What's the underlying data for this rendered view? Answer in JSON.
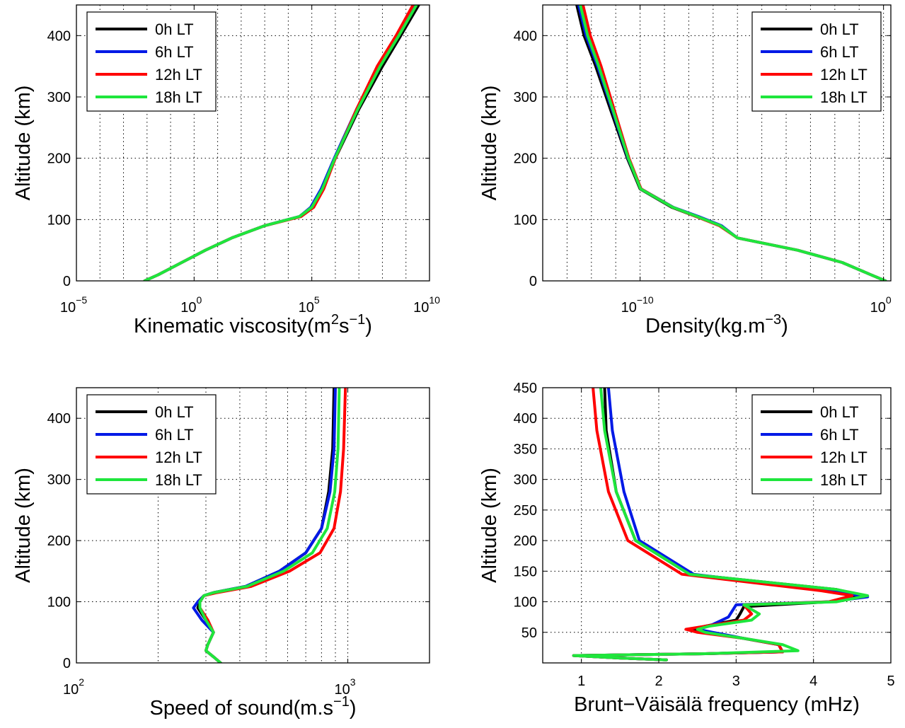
{
  "series_names": [
    "0h LT",
    "6h LT",
    "12h LT",
    "18h LT"
  ],
  "series_colors": [
    "#000000",
    "#0019e6",
    "#ff0000",
    "#1ee63c"
  ],
  "chart_data": [
    {
      "type": "line",
      "title": "",
      "xlabel_text": "Kinematic viscosity(m",
      "xlabel_sup1": "2",
      "xlabel_mid": "s",
      "xlabel_sup2": "−1",
      "xlabel_end": ")",
      "ylabel": "Altitude (km)",
      "xscale": "log",
      "xlim": [
        1e-05,
        10000000000.0
      ],
      "ylim": [
        0,
        450
      ],
      "xticks": [
        {
          "base": "10",
          "exp": "−5"
        },
        {
          "base": "10",
          "exp": "0"
        },
        {
          "base": "10",
          "exp": "5"
        },
        {
          "base": "10",
          "exp": "10"
        }
      ],
      "yticks": [
        "0",
        "100",
        "200",
        "300",
        "400"
      ],
      "grid": true,
      "legend": "top-left",
      "series": [
        {
          "name": "0h LT",
          "x": [
            0.0079,
            0.03,
            0.3,
            3,
            40,
            1000,
            30000,
            100000,
            300000,
            1000000,
            10000000,
            100000000,
            600000000,
            3500000000
          ],
          "y": [
            0,
            10,
            30,
            50,
            70,
            90,
            105,
            120,
            150,
            200,
            280,
            350,
            400,
            450
          ]
        },
        {
          "name": "6h LT",
          "x": [
            0.0079,
            0.03,
            0.3,
            3,
            40,
            1000,
            30000,
            90000,
            250000,
            900000,
            8000000,
            70000000,
            450000000,
            2500000000
          ],
          "y": [
            0,
            10,
            30,
            50,
            70,
            90,
            105,
            120,
            150,
            200,
            280,
            350,
            400,
            450
          ]
        },
        {
          "name": "12h LT",
          "x": [
            0.0079,
            0.03,
            0.3,
            3,
            40,
            1000,
            35000,
            120000,
            320000,
            1000000,
            8000000,
            60000000,
            380000000,
            2000000000
          ],
          "y": [
            0,
            10,
            30,
            50,
            70,
            90,
            105,
            120,
            150,
            200,
            280,
            350,
            400,
            450
          ]
        },
        {
          "name": "18h LT",
          "x": [
            0.0079,
            0.03,
            0.3,
            3,
            40,
            1000,
            30000,
            100000,
            280000,
            950000,
            9000000,
            80000000,
            500000000,
            2800000000
          ],
          "y": [
            0,
            10,
            30,
            50,
            70,
            90,
            105,
            120,
            150,
            200,
            280,
            350,
            400,
            450
          ]
        }
      ]
    },
    {
      "type": "line",
      "title": "",
      "xlabel_text": "Density(kg.m",
      "xlabel_sup1": "−3",
      "xlabel_end": ")",
      "ylabel": "Altitude (km)",
      "xscale": "log",
      "xlim": [
        1e-14,
        2
      ],
      "ylim": [
        0,
        450
      ],
      "xticks": [
        {
          "base": "10",
          "exp": "−10",
          "value": 1e-10
        },
        {
          "base": "10",
          "exp": "0",
          "value": 1
        }
      ],
      "yticks": [
        "0",
        "100",
        "200",
        "300",
        "400"
      ],
      "grid": true,
      "legend": "top-right",
      "series": [
        {
          "name": "0h LT",
          "x": [
            1.2,
            0.3,
            0.02,
            0.0003,
            1e-06,
            2e-07,
            2e-08,
            2e-09,
            1e-10,
            3e-11,
            6e-12,
            1.5e-12,
            5e-13,
            2.5e-13
          ],
          "y": [
            0,
            10,
            30,
            50,
            70,
            90,
            105,
            120,
            150,
            200,
            280,
            350,
            400,
            450
          ]
        },
        {
          "name": "6h LT",
          "x": [
            1.2,
            0.3,
            0.02,
            0.0003,
            1e-06,
            2.2e-07,
            2.5e-08,
            2.3e-09,
            1.1e-10,
            3.2e-11,
            7e-12,
            1.8e-12,
            6e-13,
            3e-13
          ],
          "y": [
            0,
            10,
            30,
            50,
            70,
            90,
            105,
            120,
            150,
            200,
            280,
            350,
            400,
            450
          ]
        },
        {
          "name": "12h LT",
          "x": [
            1.2,
            0.3,
            0.02,
            0.0003,
            1e-06,
            1.8e-07,
            2e-08,
            2.2e-09,
            1.1e-10,
            3.5e-11,
            8.5e-12,
            2.5e-12,
            9e-13,
            4.5e-13
          ],
          "y": [
            0,
            10,
            30,
            50,
            70,
            90,
            105,
            120,
            150,
            200,
            280,
            350,
            400,
            450
          ]
        },
        {
          "name": "18h LT",
          "x": [
            1.2,
            0.3,
            0.02,
            0.0003,
            1e-06,
            2e-07,
            2.2e-08,
            2.2e-09,
            1.05e-10,
            3.3e-11,
            7.5e-12,
            2e-12,
            7e-13,
            3.5e-13
          ],
          "y": [
            0,
            10,
            30,
            50,
            70,
            90,
            105,
            120,
            150,
            200,
            280,
            350,
            400,
            450
          ]
        }
      ]
    },
    {
      "type": "line",
      "title": "",
      "xlabel_text": "Speed of sound(m.s",
      "xlabel_sup1": "−1",
      "xlabel_end": ")",
      "ylabel": "Altitude (km)",
      "xscale": "log",
      "xlim": [
        100,
        2000
      ],
      "ylim": [
        0,
        450
      ],
      "xticks": [
        {
          "base": "10",
          "exp": "2",
          "value": 100
        },
        {
          "base": "10",
          "exp": "3",
          "value": 1000
        }
      ],
      "yticks": [
        "0",
        "100",
        "200",
        "300",
        "400"
      ],
      "grid": true,
      "legend": "top-left",
      "series": [
        {
          "name": "0h LT",
          "x": [
            340,
            320,
            300,
            305,
            320,
            300,
            280,
            285,
            295,
            320,
            420,
            560,
            700,
            800,
            850,
            880,
            890
          ],
          "y": [
            0,
            10,
            20,
            30,
            50,
            70,
            90,
            100,
            110,
            115,
            125,
            150,
            180,
            220,
            280,
            350,
            450
          ]
        },
        {
          "name": "6h LT",
          "x": [
            340,
            320,
            300,
            305,
            320,
            290,
            270,
            280,
            295,
            320,
            420,
            560,
            700,
            800,
            860,
            890,
            900
          ],
          "y": [
            0,
            10,
            20,
            30,
            50,
            70,
            90,
            100,
            110,
            115,
            125,
            150,
            180,
            220,
            280,
            350,
            450
          ]
        },
        {
          "name": "12h LT",
          "x": [
            340,
            320,
            300,
            305,
            320,
            305,
            285,
            285,
            295,
            330,
            440,
            610,
            790,
            890,
            940,
            965,
            980
          ],
          "y": [
            0,
            10,
            20,
            30,
            50,
            70,
            90,
            100,
            110,
            115,
            125,
            150,
            180,
            220,
            280,
            350,
            450
          ]
        },
        {
          "name": "18h LT",
          "x": [
            340,
            320,
            300,
            305,
            320,
            300,
            285,
            285,
            295,
            320,
            425,
            580,
            740,
            840,
            895,
            920,
            930
          ],
          "y": [
            0,
            10,
            20,
            30,
            50,
            70,
            90,
            100,
            110,
            115,
            125,
            150,
            180,
            220,
            280,
            350,
            450
          ]
        }
      ]
    },
    {
      "type": "line",
      "title": "",
      "xlabel_text": "Brunt−Väisälä frequency (mHz)",
      "ylabel": "Altitude (km)",
      "xscale": "linear",
      "xlim": [
        0.5,
        5
      ],
      "ylim": [
        0,
        450
      ],
      "xticks": [
        {
          "base": "1",
          "value": 1
        },
        {
          "base": "2",
          "value": 2
        },
        {
          "base": "3",
          "value": 3
        },
        {
          "base": "4",
          "value": 4
        },
        {
          "base": "5",
          "value": 5
        }
      ],
      "yticks": [
        "50",
        "100",
        "150",
        "200",
        "250",
        "300",
        "350",
        "400",
        "450"
      ],
      "grid": true,
      "legend": "top-right",
      "series": [
        {
          "name": "0h LT",
          "x": [
            2.1,
            1.5,
            0.9,
            2.6,
            3.6,
            3.55,
            3.1,
            2.6,
            2.45,
            2.6,
            3.0,
            3.05,
            3.1,
            4.2,
            4.65,
            4.3,
            2.4,
            1.7,
            1.45,
            1.32,
            1.3
          ],
          "y": [
            5,
            8,
            12,
            15,
            18,
            30,
            40,
            50,
            55,
            60,
            70,
            80,
            92,
            100,
            110,
            120,
            145,
            200,
            280,
            380,
            450
          ]
        },
        {
          "name": "6h LT",
          "x": [
            2.1,
            1.5,
            0.9,
            2.6,
            3.6,
            3.55,
            3.1,
            2.7,
            2.5,
            2.65,
            2.9,
            2.95,
            3.0,
            4.2,
            4.7,
            4.2,
            2.45,
            1.75,
            1.55,
            1.4,
            1.35
          ],
          "y": [
            5,
            8,
            12,
            15,
            18,
            30,
            40,
            50,
            55,
            60,
            75,
            85,
            95,
            100,
            108,
            118,
            145,
            200,
            280,
            380,
            450
          ]
        },
        {
          "name": "12h LT",
          "x": [
            2.1,
            1.5,
            0.9,
            2.6,
            3.6,
            3.55,
            3.1,
            2.5,
            2.35,
            2.6,
            3.1,
            3.2,
            3.1,
            4.2,
            4.5,
            4.1,
            2.3,
            1.6,
            1.35,
            1.2,
            1.15
          ],
          "y": [
            5,
            8,
            12,
            15,
            18,
            30,
            40,
            50,
            55,
            60,
            70,
            80,
            95,
            100,
            110,
            118,
            145,
            200,
            280,
            380,
            450
          ]
        },
        {
          "name": "18h LT",
          "x": [
            2.1,
            1.5,
            0.9,
            2.6,
            3.8,
            3.6,
            3.1,
            2.6,
            2.5,
            2.65,
            3.2,
            3.3,
            3.1,
            4.3,
            4.7,
            4.3,
            2.4,
            1.7,
            1.45,
            1.3,
            1.25
          ],
          "y": [
            5,
            8,
            12,
            15,
            20,
            30,
            40,
            50,
            55,
            60,
            70,
            80,
            95,
            100,
            110,
            120,
            145,
            200,
            280,
            380,
            450
          ]
        }
      ]
    }
  ]
}
